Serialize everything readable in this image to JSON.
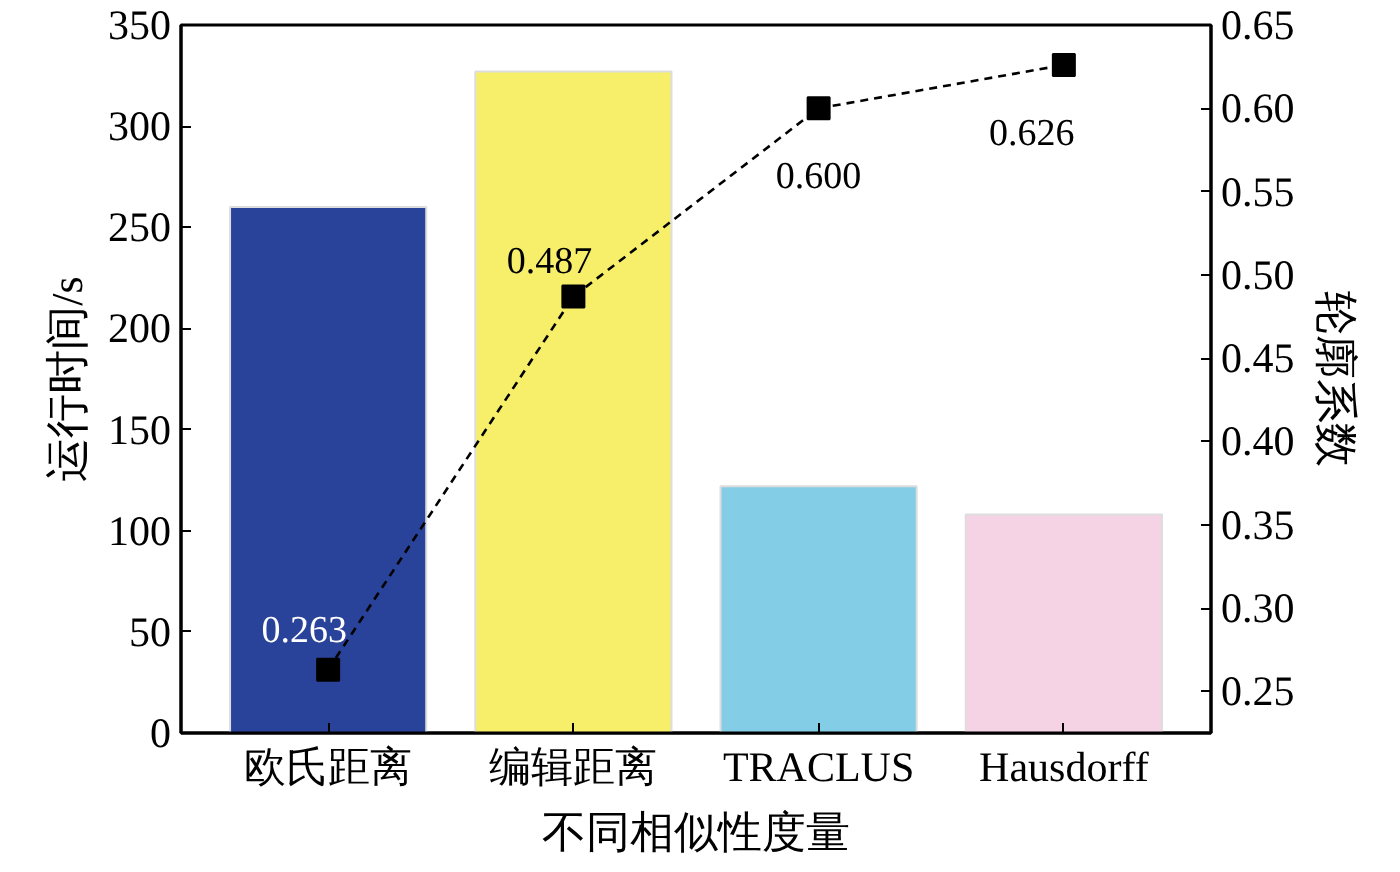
{
  "chart_data": {
    "type": "bar",
    "xlabel": "不同相似性度量",
    "ylabel": "运行时间/s",
    "y2label": "轮廓系数",
    "categories": [
      "欧氏距离",
      "编辑距离",
      "TRACLUS",
      "Hausdorff"
    ],
    "series": [
      {
        "colors": [
          "#2a439a",
          "#f7ef6a",
          "#84cde6",
          "#f5d3e4"
        ],
        "values": [
          260,
          327,
          122,
          108
        ]
      },
      {
        "type": "line",
        "axis": "y2",
        "color": "#000000",
        "marker": "square",
        "line_style": "dashed",
        "values": [
          0.263,
          0.487,
          0.6,
          0.626
        ],
        "value_labels": [
          "0.263",
          "0.487",
          "0.600",
          "0.626"
        ]
      }
    ],
    "ylim": [
      0,
      350
    ],
    "yticks": [
      0,
      50,
      100,
      150,
      200,
      250,
      300,
      350
    ],
    "y2lim": [
      0.225,
      0.65
    ],
    "y2ticks": [
      {
        "value": 0.25,
        "label": "0.25"
      },
      {
        "value": 0.3,
        "label": "0.30"
      },
      {
        "value": 0.35,
        "label": "0.35"
      },
      {
        "value": 0.4,
        "label": "0.40"
      },
      {
        "value": 0.45,
        "label": "0.45"
      },
      {
        "value": 0.5,
        "label": "0.50"
      },
      {
        "value": 0.55,
        "label": "0.55"
      },
      {
        "value": 0.6,
        "label": "0.60"
      },
      {
        "value": 0.65,
        "label": "0.65"
      }
    ],
    "grid": false
  }
}
